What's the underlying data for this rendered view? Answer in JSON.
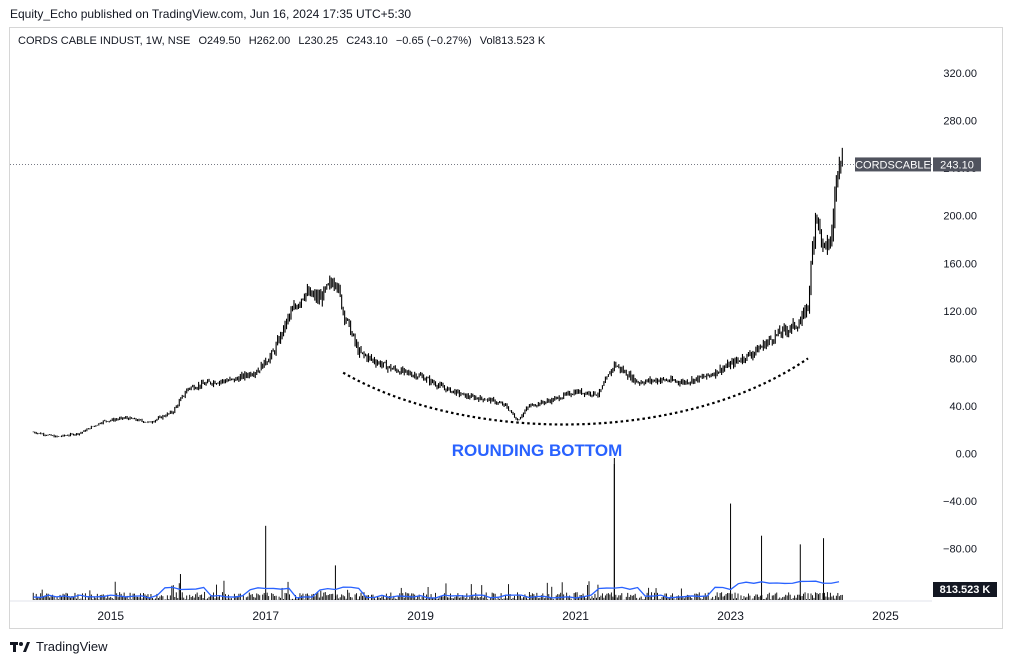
{
  "publisher": "Equity_Echo published on TradingView.com, Jun 16, 2024 17:35 UTC+5:30",
  "symbol_line": {
    "name": "CORDS CABLE INDUST, 1W, NSE",
    "open": "O249.50",
    "high": "H262.00",
    "low": "L230.25",
    "close": "C243.10",
    "change": "−0.65 (−0.27%)",
    "volume": "Vol813.523 K"
  },
  "price_tag": {
    "symbol": "CORDSCABLE",
    "value": "243.10"
  },
  "volume_tag": "813.523 K",
  "annotation": "ROUNDING BOTTOM",
  "footer": {
    "brand": "TradingView",
    "logo_icon": "tradingview-logo-icon"
  },
  "colors": {
    "candles": "#000000",
    "volume_ma": "#2962ff",
    "annotation": "#2962ff",
    "price_tag_bg": "#50535e",
    "price_line": "#787b86"
  },
  "chart_data": {
    "type": "line",
    "series": [
      {
        "name": "CORDSCABLE",
        "x": [
          2014.0,
          2014.3,
          2014.6,
          2014.9,
          2015.2,
          2015.5,
          2015.8,
          2016.0,
          2016.3,
          2016.6,
          2016.9,
          2017.1,
          2017.3,
          2017.5,
          2017.7,
          2017.9,
          2018.0,
          2018.2,
          2018.4,
          2018.6,
          2018.8,
          2019.0,
          2019.3,
          2019.6,
          2019.9,
          2020.1,
          2020.25,
          2020.4,
          2020.7,
          2021.0,
          2021.3,
          2021.5,
          2021.8,
          2022.1,
          2022.4,
          2022.7,
          2023.0,
          2023.3,
          2023.6,
          2023.9,
          2024.0,
          2024.1,
          2024.2,
          2024.3,
          2024.4,
          2024.46
        ],
        "values": [
          18,
          14,
          17,
          27,
          30,
          26,
          35,
          55,
          60,
          62,
          70,
          85,
          115,
          135,
          130,
          148,
          120,
          85,
          78,
          72,
          68,
          65,
          55,
          48,
          45,
          40,
          28,
          40,
          45,
          52,
          50,
          75,
          60,
          62,
          60,
          65,
          75,
          85,
          100,
          110,
          125,
          205,
          170,
          180,
          255,
          243
        ]
      },
      {
        "name": "Volume",
        "x": [
          2015.9,
          2017.0,
          2017.9,
          2021.5,
          2023.0,
          2023.4,
          2023.9,
          2024.2
        ],
        "values": [
          2.1,
          6.0,
          2.8,
          11.0,
          7.8,
          5.2,
          4.5,
          5.0
        ]
      }
    ],
    "y_ticks": [
      "320.00",
      "280.00",
      "240.00",
      "200.00",
      "160.00",
      "120.00",
      "80.00",
      "40.00",
      "0.00",
      "−40.00",
      "−80.00"
    ],
    "x_ticks": [
      "2015",
      "2017",
      "2019",
      "2021",
      "2023",
      "2025"
    ],
    "ylim": [
      -120,
      340
    ],
    "xlim": [
      2013.7,
      2025.6
    ],
    "grid": false
  }
}
